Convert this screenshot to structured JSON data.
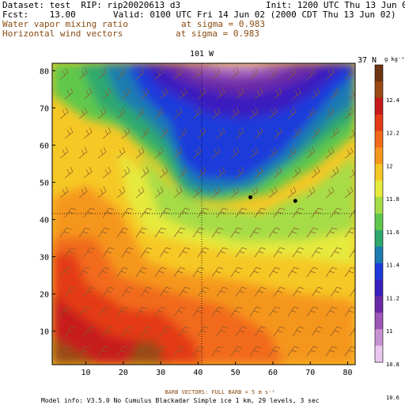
{
  "header": {
    "dataset_line": "Dataset: test  RIP: rip20020613 d3",
    "init": "Init: 1200 UTC Thu 13 Jun 02",
    "fcst": "Fcst:    13.00",
    "valid": "Valid: 0100 UTC Fri 14 Jun 02 (2000 CDT Thu 13 Jun 02)",
    "field1": "Water vapor mixing ratio",
    "field1_level": "at sigma = 0.983",
    "field2": "Horizontal wind vectors",
    "field2_level": "at sigma = 0.983"
  },
  "map": {
    "top_center_label": "101 W",
    "top_right_label": "37 N",
    "x_ticks": [
      "10",
      "20",
      "30",
      "40",
      "50",
      "60",
      "70",
      "80"
    ],
    "y_ticks": [
      "10",
      "20",
      "30",
      "40",
      "50",
      "60",
      "70",
      "80"
    ],
    "stations": [
      {
        "i": 54,
        "j": 46
      },
      {
        "i": 66,
        "j": 45
      }
    ]
  },
  "colorbar": {
    "units": "g kg⁻¹",
    "ticks": [
      "12.4",
      "12.2",
      "12",
      "11.8",
      "11.6",
      "11.4",
      "11.2",
      "11",
      "10.8",
      "10.6"
    ],
    "colors": [
      "#6e3310",
      "#9a4a12",
      "#c71a1a",
      "#e43a15",
      "#f26a1a",
      "#f5961e",
      "#f6c825",
      "#e6ea3c",
      "#a6dc46",
      "#5ec84c",
      "#2ea86e",
      "#1c7bb0",
      "#1e3adb",
      "#3a1fbf",
      "#6a2aa8",
      "#9c57b8",
      "#c792d2",
      "#e8c8ec"
    ]
  },
  "footer": {
    "barb_label": "BARB VECTORS:  FULL BARB = 5 m s⁻¹",
    "model_info": "Model info: V3.5.0 No Cumulus Blackadar  Simple ice    1 km,  29 levels,     3 sec"
  }
}
